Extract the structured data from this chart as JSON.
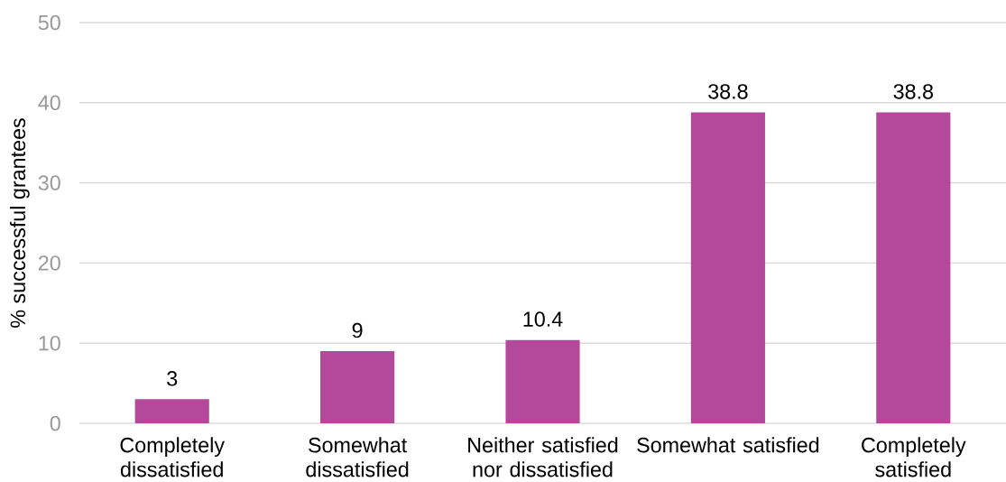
{
  "chart_data": {
    "type": "bar",
    "ylabel": "% successful grantees",
    "categories": [
      "Completely dissatisfied",
      "Somewhat dissatisfied",
      "Neither satisfied nor dissatisfied",
      "Somewhat satisfied",
      "Completely satisfied"
    ],
    "values": [
      3,
      9,
      10.4,
      38.8,
      38.8
    ],
    "color": "#b4499b",
    "ylim": [
      0,
      50
    ],
    "yticks": [
      0,
      10,
      20,
      30,
      40,
      50
    ],
    "grid": "y",
    "data_labels": true
  }
}
